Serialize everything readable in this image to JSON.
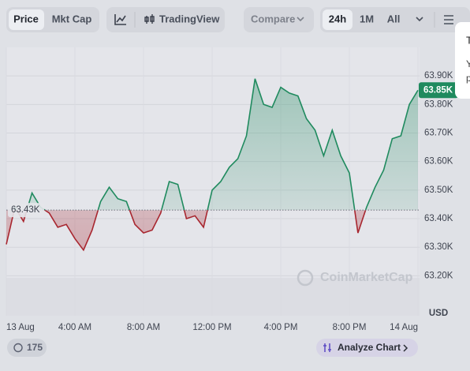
{
  "toolbar": {
    "price": "Price",
    "mkt_cap": "Mkt Cap",
    "trading_view": "TradingView",
    "compare": "Compare",
    "range_24h": "24h",
    "range_1m": "1M",
    "range_all": "All"
  },
  "popup": {
    "line1": "T",
    "line2": "Y",
    "line3": "p"
  },
  "chart_data": {
    "type": "line",
    "x": [
      0,
      0.5,
      1,
      1.5,
      2,
      2.5,
      3,
      3.5,
      4,
      4.5,
      5,
      5.5,
      6,
      6.5,
      7,
      7.5,
      8,
      8.5,
      9,
      9.5,
      10,
      10.5,
      11,
      11.5,
      12,
      12.5,
      13,
      13.5,
      14,
      14.5,
      15,
      15.5,
      16,
      16.5,
      17,
      17.5,
      18,
      18.5,
      19,
      19.5,
      20,
      20.5,
      21,
      21.5,
      22,
      22.5,
      23,
      23.5,
      24
    ],
    "series": [
      {
        "name": "Price",
        "values": [
          63.31,
          63.44,
          63.39,
          63.49,
          63.44,
          63.42,
          63.37,
          63.38,
          63.33,
          63.29,
          63.36,
          63.46,
          63.51,
          63.47,
          63.46,
          63.38,
          63.35,
          63.36,
          63.42,
          63.53,
          63.52,
          63.4,
          63.41,
          63.37,
          63.5,
          63.53,
          63.58,
          63.61,
          63.69,
          63.89,
          63.8,
          63.79,
          63.86,
          63.84,
          63.83,
          63.75,
          63.71,
          63.62,
          63.71,
          63.62,
          63.56,
          63.35,
          63.44,
          63.51,
          63.57,
          63.68,
          63.69,
          63.8,
          63.85
        ]
      }
    ],
    "up_color": "#1f8a5e",
    "down_color": "#a8262f",
    "baseline": {
      "value": 63.43,
      "label": "63.43K"
    },
    "last_price": {
      "value": 63.85,
      "label": "63.85K"
    },
    "xlim": [
      0,
      24
    ],
    "xticks": [
      {
        "value": 0,
        "label": "13 Aug"
      },
      {
        "value": 4,
        "label": "4:00 AM"
      },
      {
        "value": 8,
        "label": "8:00 AM"
      },
      {
        "value": 12,
        "label": "12:00 PM"
      },
      {
        "value": 16,
        "label": "4:00 PM"
      },
      {
        "value": 20,
        "label": "8:00 PM"
      },
      {
        "value": 24,
        "label": "14 Aug"
      }
    ],
    "ylim": [
      63.06,
      64.0
    ],
    "yticks": [
      {
        "value": 63.2,
        "label": "63.20K"
      },
      {
        "value": 63.3,
        "label": "63.30K"
      },
      {
        "value": 63.4,
        "label": "63.40K"
      },
      {
        "value": 63.5,
        "label": "63.50K"
      },
      {
        "value": 63.6,
        "label": "63.60K"
      },
      {
        "value": 63.7,
        "label": "63.70K"
      },
      {
        "value": 63.8,
        "label": "63.80K"
      },
      {
        "value": 63.9,
        "label": "63.90K"
      }
    ],
    "y_unit": "USD",
    "grid": true,
    "watermark": "CoinMarketCap"
  },
  "footer": {
    "comments": "175",
    "analyze": "Analyze Chart"
  }
}
